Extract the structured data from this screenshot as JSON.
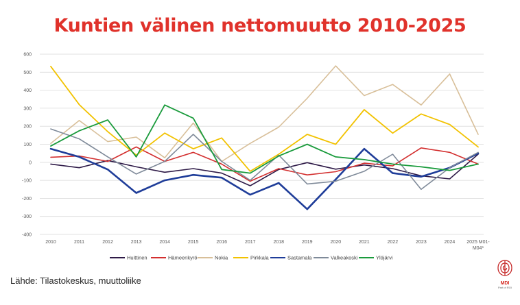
{
  "colors": {
    "title": "#e0322b",
    "grid": "#d9d9d9",
    "axis_text": "#595959"
  },
  "chart_data": {
    "type": "line",
    "title": "Kuntien välinen nettomuutto 2010-2025",
    "categories": [
      "2010",
      "2011",
      "2012",
      "2013",
      "2014",
      "2015",
      "2016",
      "2017",
      "2018",
      "2019",
      "2020",
      "2021",
      "2022",
      "2023",
      "2024",
      "2025 M01-M04*"
    ],
    "ylim": [
      -400,
      600
    ],
    "yticks": [
      600,
      500,
      400,
      300,
      200,
      100,
      0,
      -100,
      -200,
      -300,
      -400
    ],
    "grid": true,
    "legend_position": "bottom",
    "series": [
      {
        "name": "Huittinen",
        "color": "#2e1a47",
        "width": 1.6,
        "values": [
          -10,
          -30,
          10,
          -25,
          -55,
          -35,
          -60,
          -130,
          -40,
          -2,
          -38,
          -15,
          -35,
          -75,
          -92,
          45
        ]
      },
      {
        "name": "Hämeenkyrö",
        "color": "#d32f2f",
        "width": 1.6,
        "values": [
          28,
          35,
          5,
          85,
          5,
          55,
          -10,
          -105,
          -35,
          -70,
          -52,
          -5,
          -20,
          80,
          55,
          -10
        ]
      },
      {
        "name": "Nokia",
        "color": "#d8bf99",
        "width": 1.6,
        "values": [
          105,
          232,
          115,
          140,
          25,
          218,
          5,
          105,
          195,
          355,
          535,
          370,
          432,
          318,
          490,
          155
        ]
      },
      {
        "name": "Pirkkala",
        "color": "#f2c200",
        "width": 1.8,
        "values": [
          532,
          320,
          170,
          40,
          162,
          75,
          135,
          -50,
          45,
          155,
          100,
          292,
          162,
          268,
          210,
          85
        ]
      },
      {
        "name": "Sastamala",
        "color": "#1f3d99",
        "width": 2.6,
        "values": [
          75,
          30,
          -40,
          -170,
          -100,
          -70,
          -85,
          -180,
          -115,
          -260,
          -95,
          75,
          -60,
          -80,
          -30,
          50
        ]
      },
      {
        "name": "Valkeakoski",
        "color": "#7f8a99",
        "width": 1.6,
        "values": [
          185,
          130,
          30,
          -65,
          5,
          155,
          5,
          -100,
          40,
          -120,
          -105,
          -50,
          45,
          -150,
          -30,
          55
        ]
      },
      {
        "name": "Ylöjärvi",
        "color": "#1a9b3c",
        "width": 1.8,
        "values": [
          90,
          175,
          235,
          30,
          318,
          245,
          -40,
          -60,
          35,
          100,
          30,
          15,
          -10,
          -25,
          -45,
          -10
        ]
      }
    ]
  },
  "source_note": "Lähde: Tilastokeskus, muuttoliike",
  "logo": {
    "text": "MDI",
    "subtext": "Part of ROI"
  }
}
